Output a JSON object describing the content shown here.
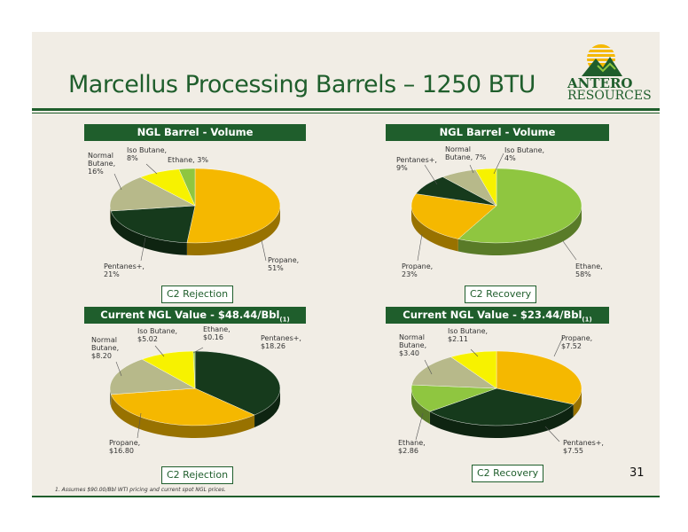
{
  "title": "Marcellus Processing Barrels – 1250 BTU",
  "logo": {
    "line1": "ANTERO",
    "line2": "RESOURCES"
  },
  "page_number": "31",
  "footnote": "1.    Assumes $90.00/Bbl WTI pricing and current spot NGL prices.",
  "colors": {
    "propane": "#f5b800",
    "pentanes": "#163a1c",
    "normal_butane": "#b7b98a",
    "iso_butane": "#f7f200",
    "ethane": "#8fc640",
    "brand_green": "#1f5e2c"
  },
  "panels": [
    {
      "header": "NGL Barrel - Volume",
      "header_sub": "",
      "tag": "C2 Rejection",
      "labels": {
        "propane": "Propane,|51%",
        "pentanes": "Pentanes+,|21%",
        "normal_butane": "Normal|Butane,|16%",
        "iso_butane": "Iso Butane,|8%",
        "ethane": "Ethane, 3%"
      }
    },
    {
      "header": "NGL Barrel - Volume",
      "header_sub": "",
      "tag": "C2 Recovery",
      "labels": {
        "ethane": "Ethane,|58%",
        "propane": "Propane,|23%",
        "pentanes": "Pentanes+,|9%",
        "normal_butane": "Normal|Butane, 7%",
        "iso_butane": "Iso Butane,|4%"
      }
    },
    {
      "header": "Current NGL Value - $48.44/Bbl",
      "header_sub": "(1)",
      "tag": "C2 Rejection",
      "labels": {
        "pentanes": "Pentanes+,|$18.26",
        "propane": "Propane,|$16.80",
        "normal_butane": "Normal|Butane,|$8.20",
        "iso_butane": "Iso Butane,|$5.02",
        "ethane": "Ethane,|$0.16"
      }
    },
    {
      "header": "Current NGL Value - $23.44/Bbl",
      "header_sub": "(1)",
      "tag": "C2 Recovery",
      "labels": {
        "propane": "Propane,|$7.52",
        "pentanes": "Pentanes+,|$7.55",
        "ethane": "Ethane,|$2.86",
        "normal_butane": "Normal|Butane,|$3.40",
        "iso_butane": "Iso Butane,|$2.11"
      }
    }
  ],
  "chart_data": [
    {
      "type": "pie",
      "title": "NGL Barrel - Volume",
      "categories": [
        "Propane",
        "Pentanes+",
        "Normal Butane",
        "Iso Butane",
        "Ethane"
      ],
      "values": [
        51,
        21,
        16,
        8,
        3
      ],
      "unit": "%"
    },
    {
      "type": "pie",
      "title": "NGL Barrel - Volume",
      "categories": [
        "Ethane",
        "Propane",
        "Pentanes+",
        "Normal Butane",
        "Iso Butane"
      ],
      "values": [
        58,
        23,
        9,
        7,
        4
      ],
      "unit": "%"
    },
    {
      "type": "pie",
      "title": "Current NGL Value - $48.44/Bbl",
      "categories": [
        "Pentanes+",
        "Propane",
        "Normal Butane",
        "Iso Butane",
        "Ethane"
      ],
      "values": [
        18.26,
        16.8,
        8.2,
        5.02,
        0.16
      ],
      "unit": "$"
    },
    {
      "type": "pie",
      "title": "Current NGL Value - $23.44/Bbl",
      "categories": [
        "Propane",
        "Pentanes+",
        "Ethane",
        "Normal Butane",
        "Iso Butane"
      ],
      "values": [
        7.52,
        7.55,
        2.86,
        3.4,
        2.11
      ],
      "unit": "$"
    }
  ]
}
